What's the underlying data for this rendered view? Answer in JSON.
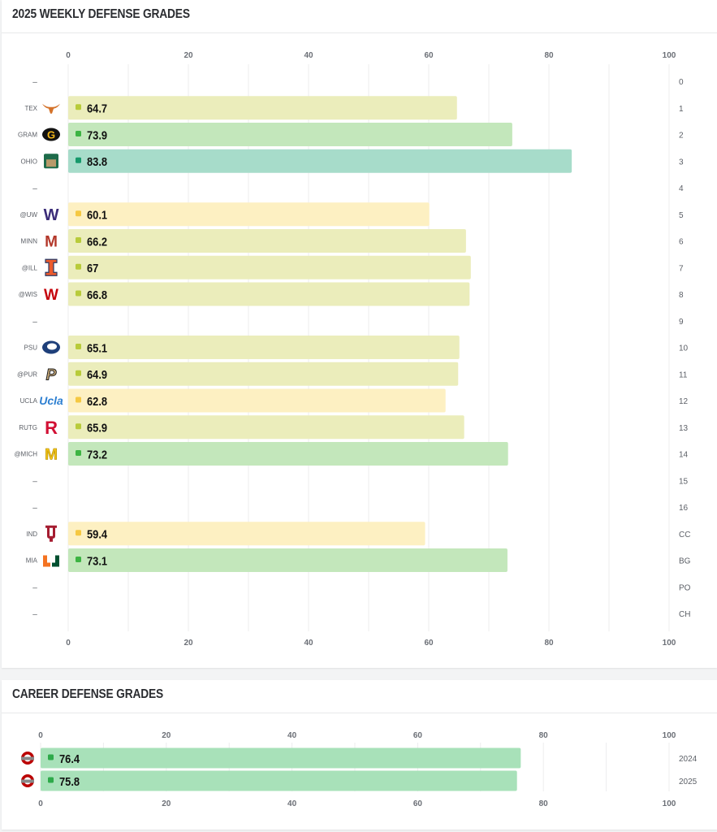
{
  "weekly": {
    "title": "2025 WEEKLY DEFENSE GRADES",
    "no_game_label": "–"
  },
  "career": {
    "title": "CAREER DEFENSE GRADES"
  },
  "grade_colors": {
    "low": {
      "bar": "#fdf0c2",
      "dot": "#f5c842"
    },
    "mid": {
      "bar": "#ebedbb",
      "dot": "#b8cb3a"
    },
    "good": {
      "bar": "#c3e7bb",
      "dot": "#3db443"
    },
    "high": {
      "bar": "#a7dcca",
      "dot": "#16996b"
    },
    "career": {
      "bar": "#a8e1b9",
      "dot": "#2eaa4a"
    }
  },
  "chart_data": [
    {
      "type": "bar",
      "orientation": "horizontal",
      "title": "2025 WEEKLY DEFENSE GRADES",
      "xlim": [
        0,
        100
      ],
      "xticks": [
        0,
        20,
        40,
        60,
        80,
        100
      ],
      "grid": true,
      "rows": [
        {
          "week": "0",
          "opponent": null,
          "logo": null,
          "value": null
        },
        {
          "week": "1",
          "opponent": "TEX",
          "logo": "texas-longhorn-logo",
          "value": 64.7,
          "tier": "mid"
        },
        {
          "week": "2",
          "opponent": "GRAM",
          "logo": "grambling-g-logo",
          "value": 73.9,
          "tier": "good"
        },
        {
          "week": "3",
          "opponent": "OHIO",
          "logo": "ohio-bobcats-logo",
          "value": 83.8,
          "tier": "high"
        },
        {
          "week": "4",
          "opponent": null,
          "logo": null,
          "value": null
        },
        {
          "week": "5",
          "opponent": "@UW",
          "logo": "washington-w-logo",
          "value": 60.1,
          "tier": "low"
        },
        {
          "week": "6",
          "opponent": "MINN",
          "logo": "minnesota-m-logo",
          "value": 66.2,
          "tier": "mid"
        },
        {
          "week": "7",
          "opponent": "@ILL",
          "logo": "illinois-i-logo",
          "value": 67,
          "tier": "mid"
        },
        {
          "week": "8",
          "opponent": "@WIS",
          "logo": "wisconsin-w-logo",
          "value": 66.8,
          "tier": "mid"
        },
        {
          "week": "9",
          "opponent": null,
          "logo": null,
          "value": null
        },
        {
          "week": "10",
          "opponent": "PSU",
          "logo": "penn-state-lion-logo",
          "value": 65.1,
          "tier": "mid"
        },
        {
          "week": "11",
          "opponent": "@PUR",
          "logo": "purdue-p-logo",
          "value": 64.9,
          "tier": "mid"
        },
        {
          "week": "12",
          "opponent": "UCLA",
          "logo": "ucla-script-logo",
          "value": 62.8,
          "tier": "low"
        },
        {
          "week": "13",
          "opponent": "RUTG",
          "logo": "rutgers-r-logo",
          "value": 65.9,
          "tier": "mid"
        },
        {
          "week": "14",
          "opponent": "@MICH",
          "logo": "michigan-m-logo",
          "value": 73.2,
          "tier": "good"
        },
        {
          "week": "15",
          "opponent": null,
          "logo": null,
          "value": null
        },
        {
          "week": "16",
          "opponent": null,
          "logo": null,
          "value": null
        },
        {
          "week": "CC",
          "opponent": "IND",
          "logo": "indiana-iu-logo",
          "value": 59.4,
          "tier": "low"
        },
        {
          "week": "BG",
          "opponent": "MIA",
          "logo": "miami-u-logo",
          "value": 73.1,
          "tier": "good"
        },
        {
          "week": "PO",
          "opponent": null,
          "logo": null,
          "value": null
        },
        {
          "week": "CH",
          "opponent": null,
          "logo": null,
          "value": null
        }
      ]
    },
    {
      "type": "bar",
      "orientation": "horizontal",
      "title": "CAREER DEFENSE GRADES",
      "xlim": [
        0,
        100
      ],
      "xticks": [
        0,
        20,
        40,
        60,
        80,
        100
      ],
      "grid": true,
      "rows": [
        {
          "season": "2024",
          "logo": "ohio-state-logo",
          "value": 76.4,
          "tier": "career"
        },
        {
          "season": "2025",
          "logo": "ohio-state-logo",
          "value": 75.8,
          "tier": "career"
        }
      ]
    }
  ]
}
